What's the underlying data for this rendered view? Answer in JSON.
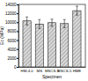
{
  "chart_data": {
    "type": "bar",
    "x_label": "Specimen",
    "y_label": "Eᴄ (MPa)",
    "categories": [
      "HM-4.0",
      "MS",
      "MSCS-3",
      "MSCS-5",
      "HME"
    ],
    "values": [
      10300,
      9600,
      9900,
      9700,
      12600
    ],
    "errors": [
      900,
      1000,
      800,
      900,
      1000
    ],
    "color": "#d9d9d9",
    "ylim": [
      0,
      14000
    ],
    "yticks": [
      0,
      2000,
      4000,
      6000,
      8000,
      10000,
      12000,
      14000
    ]
  }
}
